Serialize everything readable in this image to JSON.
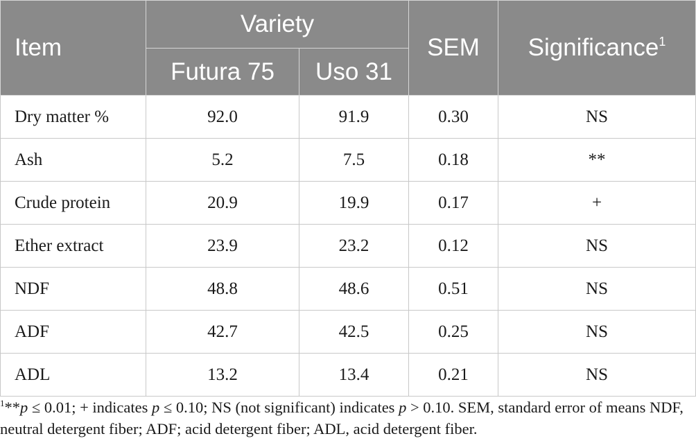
{
  "header": {
    "item": "Item",
    "variety": "Variety",
    "variety_1": "Futura 75",
    "variety_2": "Uso 31",
    "sem": "SEM",
    "significance": "Significance",
    "significance_sup": "1"
  },
  "rows": [
    {
      "item": "Dry matter %",
      "v1": "92.0",
      "v2": "91.9",
      "sem": "0.30",
      "sig": "NS"
    },
    {
      "item": "Ash",
      "v1": "5.2",
      "v2": "7.5",
      "sem": "0.18",
      "sig": "**"
    },
    {
      "item": "Crude protein",
      "v1": "20.9",
      "v2": "19.9",
      "sem": "0.17",
      "sig": "+"
    },
    {
      "item": "Ether extract",
      "v1": "23.9",
      "v2": "23.2",
      "sem": "0.12",
      "sig": "NS"
    },
    {
      "item": "NDF",
      "v1": "48.8",
      "v2": "48.6",
      "sem": "0.51",
      "sig": "NS"
    },
    {
      "item": "ADF",
      "v1": "42.7",
      "v2": "42.5",
      "sem": "0.25",
      "sig": "NS"
    },
    {
      "item": "ADL",
      "v1": "13.2",
      "v2": "13.4",
      "sem": "0.21",
      "sig": "NS"
    }
  ],
  "footnote": {
    "marker": "1",
    "s1": "**",
    "p": "p",
    "s2": " ≤ 0.01; + indicates ",
    "s3": " ≤ 0.10; NS (not significant) indicates ",
    "s4": " > 0.10. SEM, standard error of means NDF, neutral detergent fiber; ADF; acid detergent fiber; ADL, acid detergent fiber."
  }
}
